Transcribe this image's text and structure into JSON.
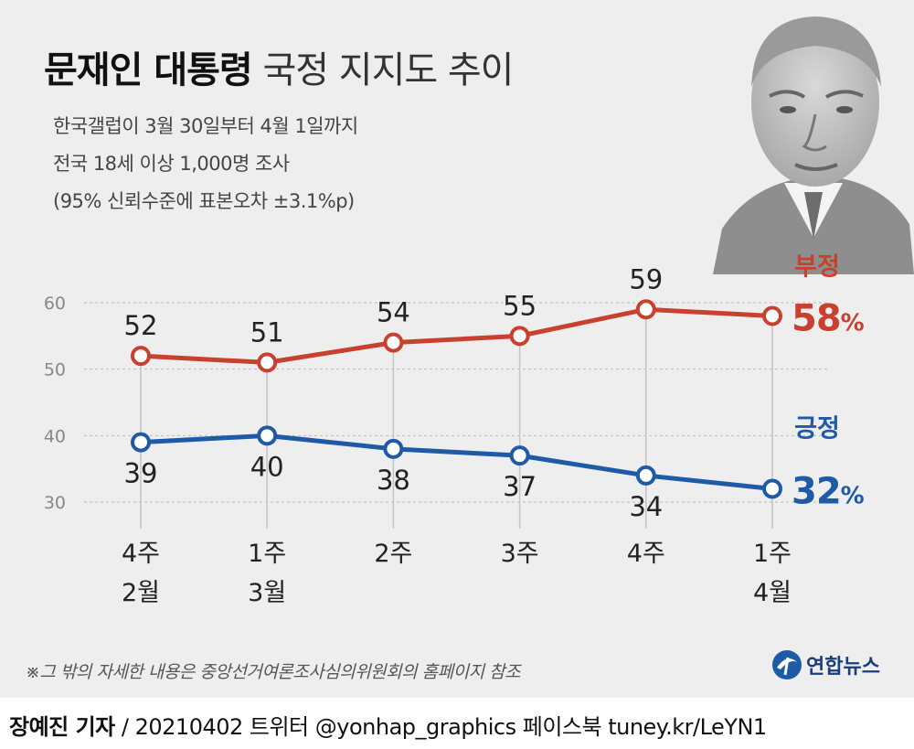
{
  "header": {
    "title_bold": "문재인 대통령",
    "title_light": "국정 지지도 추이",
    "subtitle_lines": [
      "한국갤럽이 3월 30일부터 4월 1일까지",
      "전국 18세 이상 1,000명 조사",
      "(95% 신뢰수준에 표본오차 ±3.1%p)"
    ]
  },
  "chart_data": {
    "type": "line",
    "title": "문재인 대통령 국정 지지도 추이",
    "categories": [
      {
        "week": "4주",
        "month": "2월"
      },
      {
        "week": "1주",
        "month": "3월"
      },
      {
        "week": "2주",
        "month": ""
      },
      {
        "week": "3주",
        "month": ""
      },
      {
        "week": "4주",
        "month": ""
      },
      {
        "week": "1주",
        "month": "4월"
      }
    ],
    "series": [
      {
        "name": "부정",
        "values": [
          52,
          51,
          54,
          55,
          59,
          58
        ],
        "color": "#c8412f",
        "latest_label": "58",
        "unit": "%"
      },
      {
        "name": "긍정",
        "values": [
          39,
          40,
          38,
          37,
          34,
          32
        ],
        "color": "#1f5aa6",
        "latest_label": "32",
        "unit": "%"
      }
    ],
    "yticks": [
      30,
      40,
      50,
      60
    ],
    "ylim": [
      28,
      62
    ],
    "grid": true,
    "xlabel": "",
    "ylabel": ""
  },
  "footer": {
    "note": "※그 밖의 자세한 내용은 중앙선거여론조사심의위원회의 홈페이지 참조",
    "logo_text": "연합뉴스",
    "byline_bold": "장예진 기자",
    "byline_rest": " / 20210402 트위터 @yonhap_graphics  페이스북 tuney.kr/LeYN1"
  },
  "icons": {
    "logo": "yonhap-logo-icon",
    "portrait": "portrait-photo"
  }
}
